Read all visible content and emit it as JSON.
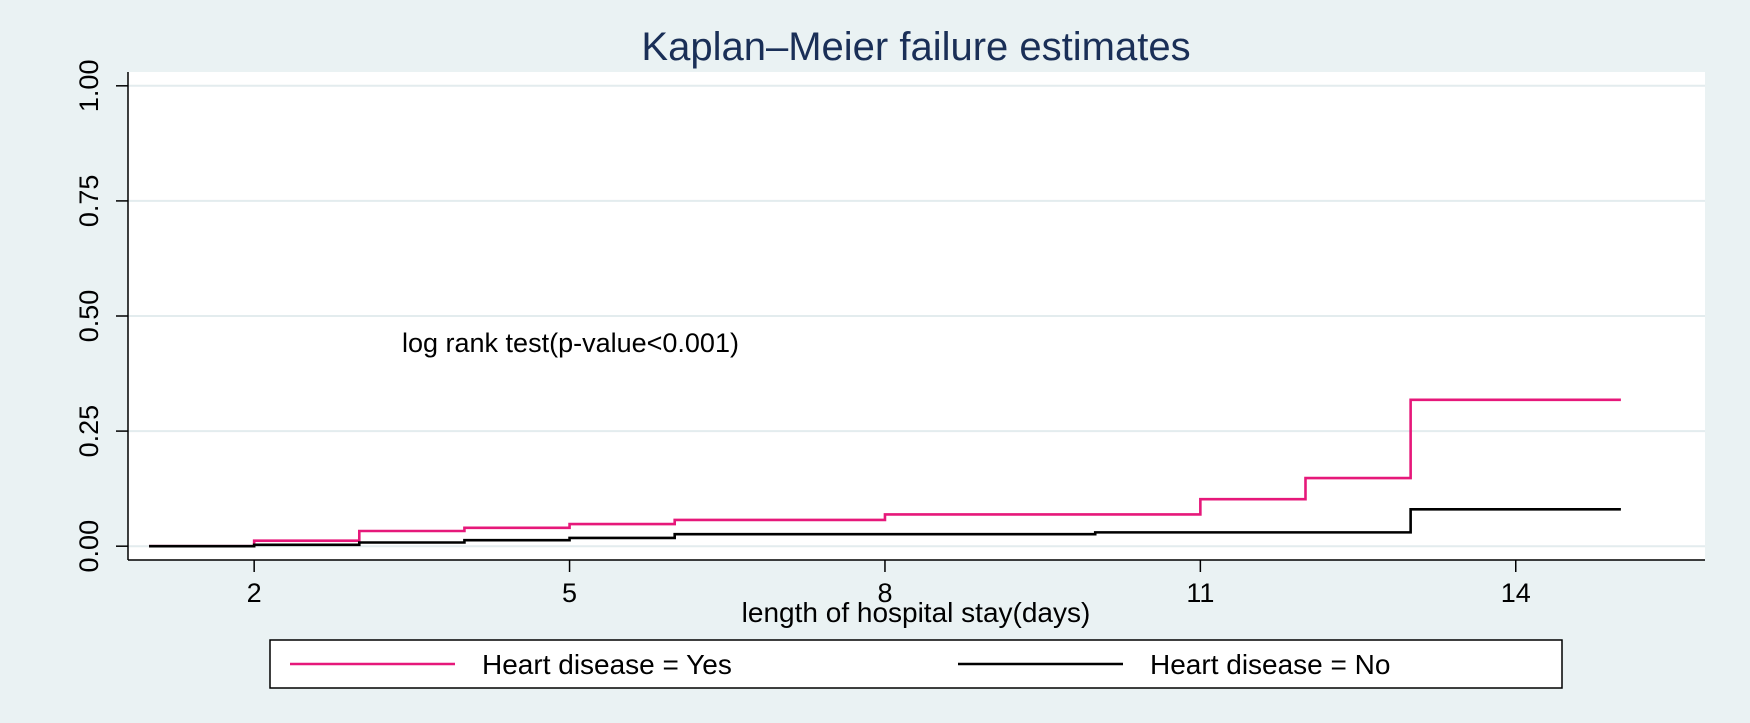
{
  "chart_data": {
    "type": "line",
    "step": "post",
    "title": "Kaplan–Meier failure estimates",
    "xlabel": "length of hospital stay(days)",
    "ylabel": "",
    "xlim": [
      0.8,
      15.8
    ],
    "ylim": [
      -0.03,
      1.03
    ],
    "xticks": [
      2,
      5,
      8,
      11,
      14
    ],
    "yticks": [
      0.0,
      0.25,
      0.5,
      0.75,
      1.0
    ],
    "ytick_labels": [
      "0.00",
      "0.25",
      "0.50",
      "0.75",
      "1.00"
    ],
    "grid": true,
    "annotation": "log rank test(p-value<0.001)",
    "legend_position": "bottom",
    "series": [
      {
        "name": "Heart disease = Yes",
        "color": "#e6187a",
        "x": [
          1,
          2,
          3,
          4,
          5,
          6,
          8,
          11,
          12,
          13,
          15
        ],
        "y": [
          0.0,
          0.012,
          0.033,
          0.04,
          0.048,
          0.057,
          0.069,
          0.102,
          0.148,
          0.318,
          0.318
        ]
      },
      {
        "name": "Heart disease = No",
        "color": "#000000",
        "x": [
          1,
          2,
          3,
          4,
          5,
          6,
          10,
          13,
          15
        ],
        "y": [
          0.0,
          0.003,
          0.008,
          0.013,
          0.018,
          0.026,
          0.03,
          0.08,
          0.08
        ]
      }
    ]
  }
}
